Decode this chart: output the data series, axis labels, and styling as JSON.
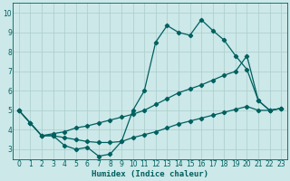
{
  "xlabel": "Humidex (Indice chaleur)",
  "bg_color": "#cce8e8",
  "grid_color": "#aacccc",
  "line_color": "#006060",
  "xlim": [
    -0.5,
    23.5
  ],
  "ylim": [
    2.5,
    10.5
  ],
  "xticks": [
    0,
    1,
    2,
    3,
    4,
    5,
    6,
    7,
    8,
    9,
    10,
    11,
    12,
    13,
    14,
    15,
    16,
    17,
    18,
    19,
    20,
    21,
    22,
    23
  ],
  "yticks": [
    3,
    4,
    5,
    6,
    7,
    8,
    9,
    10
  ],
  "line1_x": [
    0,
    1,
    2,
    3,
    4,
    5,
    6,
    7,
    8,
    9,
    10,
    11,
    12,
    13,
    14,
    15,
    16,
    17,
    18,
    19,
    20,
    21,
    22,
    23
  ],
  "line1_y": [
    5.0,
    4.35,
    3.7,
    3.7,
    3.2,
    3.0,
    3.1,
    2.65,
    2.75,
    3.4,
    5.0,
    6.0,
    8.5,
    9.35,
    9.0,
    8.85,
    9.65,
    9.1,
    8.6,
    7.8,
    7.1,
    5.5,
    5.0,
    5.1
  ],
  "line2_x": [
    0,
    1,
    2,
    3,
    4,
    5,
    6,
    7,
    8,
    9,
    10,
    11,
    12,
    13,
    14,
    15,
    16,
    17,
    18,
    19,
    20,
    21,
    22,
    23
  ],
  "line2_y": [
    5.0,
    4.35,
    3.7,
    3.8,
    3.9,
    4.1,
    4.2,
    4.35,
    4.5,
    4.65,
    4.8,
    5.0,
    5.3,
    5.6,
    5.9,
    6.1,
    6.3,
    6.55,
    6.8,
    7.0,
    7.8,
    5.5,
    5.0,
    5.1
  ],
  "line3_x": [
    0,
    1,
    2,
    3,
    4,
    5,
    6,
    7,
    8,
    9,
    10,
    11,
    12,
    13,
    14,
    15,
    16,
    17,
    18,
    19,
    20,
    21,
    22,
    23
  ],
  "line3_y": [
    5.0,
    4.35,
    3.7,
    3.7,
    3.6,
    3.5,
    3.4,
    3.35,
    3.35,
    3.4,
    3.6,
    3.75,
    3.9,
    4.1,
    4.3,
    4.45,
    4.6,
    4.75,
    4.9,
    5.05,
    5.2,
    5.0,
    5.0,
    5.1
  ],
  "tick_fontsize": 5.5,
  "xlabel_fontsize": 6.5
}
